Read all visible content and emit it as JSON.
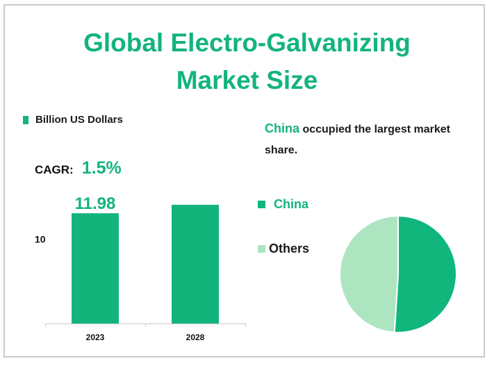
{
  "title_line1": "Global Electro-Galvanizing",
  "title_line2": "Market Size",
  "colors": {
    "accent": "#13b47b",
    "china": "#10b67c",
    "others": "#ade5c1",
    "text": "#1a1a1a",
    "axis": "#c9c9c9"
  },
  "bar_legend": "Billion US Dollars",
  "cagr": {
    "label": "CAGR:",
    "value": "1.5%"
  },
  "share_note": {
    "highlight": "China",
    "text": " occupied the largest market share."
  },
  "chart_data": [
    {
      "type": "bar",
      "categories": [
        "2023",
        "2028"
      ],
      "values": [
        11.98,
        12.9
      ],
      "data_labels": [
        "11.98",
        ""
      ],
      "ylabel": "Billion US Dollars",
      "ytick_labels": [
        "10"
      ],
      "ylim": [
        0,
        12.9
      ]
    },
    {
      "type": "pie",
      "labels": [
        "China",
        "Others"
      ],
      "values": [
        51,
        49
      ],
      "legend_position": "left"
    }
  ]
}
